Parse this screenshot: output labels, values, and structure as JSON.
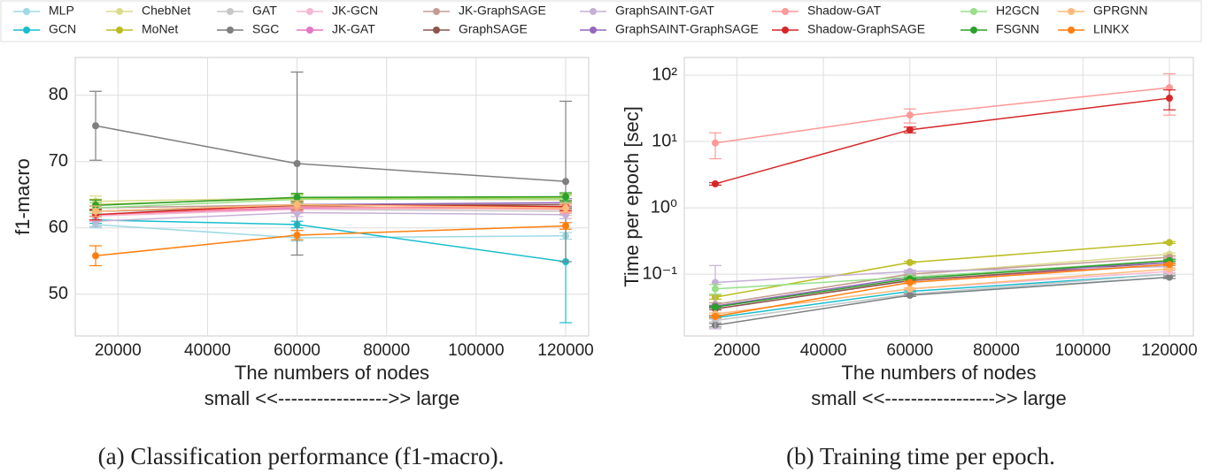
{
  "legend": {
    "entries": [
      {
        "name": "MLP",
        "color": "#9edae5"
      },
      {
        "name": "GCN",
        "color": "#17becf"
      },
      {
        "name": "ChebNet",
        "color": "#dbdb8d"
      },
      {
        "name": "MoNet",
        "color": "#bcbd22"
      },
      {
        "name": "GAT",
        "color": "#c7c7c7"
      },
      {
        "name": "SGC",
        "color": "#7f7f7f"
      },
      {
        "name": "JK-GCN",
        "color": "#f7b6d2"
      },
      {
        "name": "JK-GAT",
        "color": "#e377c2"
      },
      {
        "name": "JK-GraphSAGE",
        "color": "#c49c94"
      },
      {
        "name": "GraphSAGE",
        "color": "#8c564b"
      },
      {
        "name": "GraphSAINT-GAT",
        "color": "#c5b0d5"
      },
      {
        "name": "GraphSAINT-GraphSAGE",
        "color": "#9467bd"
      },
      {
        "name": "Shadow-GAT",
        "color": "#ff9896"
      },
      {
        "name": "Shadow-GraphSAGE",
        "color": "#d62728"
      },
      {
        "name": "H2GCN",
        "color": "#98df8a"
      },
      {
        "name": "FSGNN",
        "color": "#2ca02c"
      },
      {
        "name": "GPRGNN",
        "color": "#ffbb78"
      },
      {
        "name": "LINKX",
        "color": "#ff7f0e"
      }
    ]
  },
  "chart_data": [
    {
      "type": "line",
      "caption": "(a) Classification performance (f1-macro).",
      "y_label": "f1-macro",
      "x_label": "The numbers of nodes",
      "x_sublabel": "small <<----------------->> large",
      "x": [
        15000,
        60000,
        120000
      ],
      "xlim": [
        10450,
        125140
      ],
      "xticks": [
        20000,
        40000,
        60000,
        80000,
        100000,
        120000
      ],
      "ylim": [
        43.7,
        85.7
      ],
      "yticks": [
        50,
        60,
        70,
        80
      ],
      "log_y": false,
      "grid": true,
      "series": [
        {
          "values": [
            60.5,
            58.5,
            58.8
          ],
          "errors": [
            0.5,
            0.5,
            0.5
          ]
        },
        {
          "values": [
            61.2,
            60.5,
            54.9
          ],
          "errors": [
            0.5,
            0.5,
            9.2
          ]
        },
        {
          "values": [
            64.0,
            64.5,
            64.2
          ],
          "errors": [
            0.8,
            0.6,
            0.6
          ]
        },
        {
          "values": [
            63.5,
            64.5,
            64.5
          ],
          "errors": [
            0.8,
            0.6,
            0.6
          ]
        },
        {
          "values": [
            62.5,
            62.8,
            62.5
          ],
          "errors": [
            0.8,
            0.6,
            0.6
          ]
        },
        {
          "values": [
            75.4,
            69.7,
            67.0
          ],
          "errors": [
            5.2,
            13.8,
            12.1
          ]
        },
        {
          "values": [
            61.8,
            62.8,
            63.0
          ],
          "errors": [
            0.8,
            0.6,
            0.6
          ]
        },
        {
          "values": [
            62.0,
            63.0,
            63.2
          ],
          "errors": [
            0.8,
            0.6,
            0.6
          ]
        },
        {
          "values": [
            63.0,
            63.5,
            63.5
          ],
          "errors": [
            0.8,
            0.6,
            0.6
          ]
        },
        {
          "values": [
            62.5,
            63.3,
            63.5
          ],
          "errors": [
            0.8,
            0.6,
            0.6
          ]
        },
        {
          "values": [
            61.0,
            62.3,
            62.0
          ],
          "errors": [
            0.8,
            0.6,
            0.6
          ]
        },
        {
          "values": [
            62.5,
            63.5,
            63.8
          ],
          "errors": [
            0.8,
            0.6,
            0.6
          ]
        },
        {
          "values": [
            62.0,
            63.2,
            62.8
          ],
          "errors": [
            0.8,
            0.6,
            0.6
          ]
        },
        {
          "values": [
            62.0,
            63.5,
            63.2
          ],
          "errors": [
            0.8,
            0.6,
            0.6
          ]
        },
        {
          "values": [
            63.0,
            64.3,
            64.4
          ],
          "errors": [
            0.8,
            0.6,
            0.6
          ]
        },
        {
          "values": [
            63.4,
            64.6,
            64.7
          ],
          "errors": [
            0.8,
            0.6,
            0.6
          ]
        },
        {
          "values": [
            62.5,
            63.5,
            63.0
          ],
          "errors": [
            0.8,
            0.6,
            0.6
          ]
        },
        {
          "values": [
            55.8,
            58.9,
            60.3
          ],
          "errors": [
            1.5,
            0.7,
            0.5
          ]
        }
      ]
    },
    {
      "type": "line",
      "caption": "(b) Training time per epoch.",
      "y_label": "Time per epoch [sec]",
      "x_label": "The numbers of nodes",
      "x_sublabel": "small <<----------------->> large",
      "x": [
        15000,
        60000,
        120000
      ],
      "xlim": [
        7840,
        125530
      ],
      "xticks": [
        20000,
        40000,
        60000,
        80000,
        100000,
        120000
      ],
      "ylim": [
        0.0117,
        185
      ],
      "log_y": true,
      "grid": true,
      "yticks": [
        {
          "value": 0.1,
          "label": "10⁻¹"
        },
        {
          "value": 1,
          "label": "10⁰"
        },
        {
          "value": 10,
          "label": "10¹"
        },
        {
          "value": 100,
          "label": "10²"
        }
      ],
      "series": [
        {
          "values": [
            0.02,
            0.05,
            0.09
          ],
          "errors": [
            0.001,
            0.002,
            0.004
          ]
        },
        {
          "values": [
            0.022,
            0.055,
            0.1
          ],
          "errors": [
            0.001,
            0.002,
            0.004
          ]
        },
        {
          "values": [
            0.035,
            0.1,
            0.2
          ],
          "errors": [
            0.002,
            0.004,
            0.008
          ]
        },
        {
          "values": [
            0.045,
            0.15,
            0.3
          ],
          "errors": [
            0.003,
            0.006,
            0.01
          ]
        },
        {
          "values": [
            0.02,
            0.05,
            0.1
          ],
          "errors": [
            0.001,
            0.002,
            0.004
          ]
        },
        {
          "values": [
            0.017,
            0.048,
            0.09
          ],
          "errors": [
            0.001,
            0.002,
            0.004
          ]
        },
        {
          "values": [
            0.025,
            0.06,
            0.11
          ],
          "errors": [
            0.001,
            0.002,
            0.004
          ]
        },
        {
          "values": [
            0.03,
            0.08,
            0.14
          ],
          "errors": [
            0.001,
            0.003,
            0.005
          ]
        },
        {
          "values": [
            0.035,
            0.1,
            0.18
          ],
          "errors": [
            0.002,
            0.004,
            0.007
          ]
        },
        {
          "values": [
            0.03,
            0.08,
            0.15
          ],
          "errors": [
            0.001,
            0.003,
            0.005
          ]
        },
        {
          "values": [
            0.075,
            0.11,
            0.13
          ],
          "errors": [
            0.06,
            0.005,
            0.005
          ]
        },
        {
          "values": [
            0.033,
            0.09,
            0.15
          ],
          "errors": [
            0.001,
            0.003,
            0.005
          ]
        },
        {
          "values": [
            9.5,
            25,
            65
          ],
          "errors": [
            4,
            6,
            40
          ]
        },
        {
          "values": [
            2.3,
            15,
            45
          ],
          "errors": [
            0.1,
            1.5,
            15
          ]
        },
        {
          "values": [
            0.06,
            0.09,
            0.16
          ],
          "errors": [
            0.01,
            0.003,
            0.005
          ]
        },
        {
          "values": [
            0.032,
            0.085,
            0.16
          ],
          "errors": [
            0.001,
            0.003,
            0.005
          ]
        },
        {
          "values": [
            0.025,
            0.06,
            0.12
          ],
          "errors": [
            0.001,
            0.002,
            0.004
          ]
        },
        {
          "values": [
            0.023,
            0.075,
            0.14
          ],
          "errors": [
            0.001,
            0.003,
            0.005
          ]
        }
      ]
    }
  ]
}
